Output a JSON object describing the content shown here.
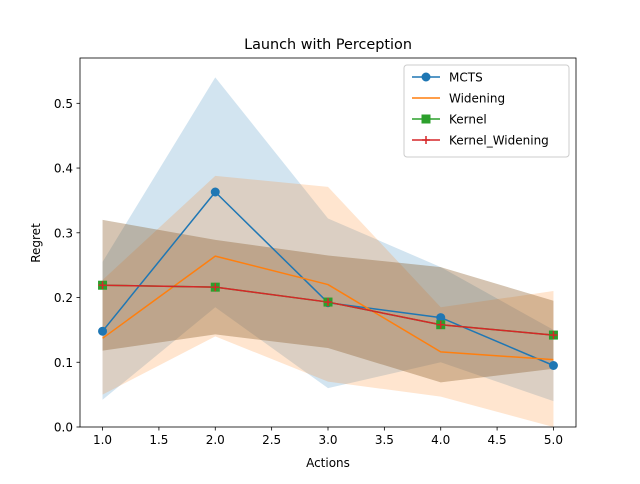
{
  "chart_data": {
    "type": "line",
    "title": "Launch with Perception",
    "xlabel": "Actions",
    "ylabel": "Regret",
    "xlim": [
      0.8,
      5.2
    ],
    "ylim": [
      0.0,
      0.57
    ],
    "xticks": [
      1.0,
      1.5,
      2.0,
      2.5,
      3.0,
      3.5,
      4.0,
      4.5,
      5.0
    ],
    "xtick_labels": [
      "1.0",
      "1.5",
      "2.0",
      "2.5",
      "3.0",
      "3.5",
      "4.0",
      "4.5",
      "5.0"
    ],
    "yticks": [
      0.0,
      0.1,
      0.2,
      0.3,
      0.4,
      0.5
    ],
    "ytick_labels": [
      "0.0",
      "0.1",
      "0.2",
      "0.3",
      "0.4",
      "0.5"
    ],
    "grid": false,
    "legend_position": "top-right",
    "x": [
      1,
      2,
      3,
      4,
      5
    ],
    "series": [
      {
        "name": "MCTS",
        "color": "#1f77b4",
        "marker": "circle",
        "values": [
          0.148,
          0.363,
          0.192,
          0.169,
          0.095
        ],
        "lower": [
          0.042,
          0.185,
          0.06,
          0.1,
          0.04
        ],
        "upper": [
          0.255,
          0.54,
          0.322,
          0.247,
          0.15
        ]
      },
      {
        "name": "Widening",
        "color": "#ff7f0e",
        "marker": "none",
        "values": [
          0.137,
          0.264,
          0.22,
          0.116,
          0.104
        ],
        "lower": [
          0.05,
          0.14,
          0.07,
          0.047,
          0.0
        ],
        "upper": [
          0.227,
          0.388,
          0.371,
          0.185,
          0.21
        ]
      },
      {
        "name": "Kernel",
        "color": "#2ca02c",
        "marker": "square",
        "values": [
          0.219,
          0.216,
          0.193,
          0.158,
          0.142
        ],
        "lower": [
          0.118,
          0.143,
          0.122,
          0.069,
          0.09
        ],
        "upper": [
          0.32,
          0.289,
          0.265,
          0.247,
          0.195
        ]
      },
      {
        "name": "Kernel_Widening",
        "color": "#d62728",
        "marker": "plus",
        "values": [
          0.219,
          0.216,
          0.193,
          0.158,
          0.142
        ],
        "lower": [
          0.118,
          0.143,
          0.122,
          0.069,
          0.09
        ],
        "upper": [
          0.32,
          0.289,
          0.265,
          0.247,
          0.195
        ]
      }
    ]
  }
}
